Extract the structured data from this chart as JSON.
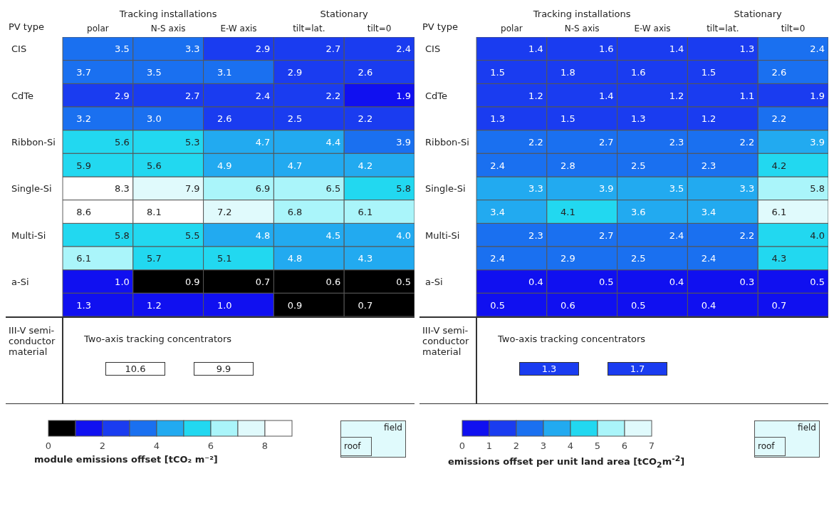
{
  "chart_data": [
    {
      "type": "heatmap",
      "categories": [
        "polar",
        "N-S axis",
        "E-W axis",
        "tilt=lat.",
        "tilt=0"
      ],
      "y_categories": [
        "CIS",
        null,
        "CdTe",
        null,
        "Ribbon-Si",
        null,
        "Single-Si",
        null,
        "Multi-Si",
        null,
        "a-Si",
        null
      ],
      "cells": [
        [
          3.5,
          3.3,
          2.9,
          2.7,
          2.4
        ],
        [
          3.7,
          3.5,
          3.1,
          2.9,
          2.6
        ],
        [
          2.9,
          2.7,
          2.4,
          2.2,
          1.9
        ],
        [
          3.2,
          3.0,
          2.6,
          2.5,
          2.2
        ],
        [
          5.6,
          5.3,
          4.7,
          4.4,
          3.9
        ],
        [
          5.9,
          5.6,
          4.9,
          4.7,
          4.2
        ],
        [
          8.3,
          7.9,
          6.9,
          6.5,
          5.8
        ],
        [
          8.6,
          8.1,
          7.2,
          6.8,
          6.1
        ],
        [
          5.8,
          5.5,
          4.8,
          4.5,
          4.0
        ],
        [
          6.1,
          5.7,
          5.1,
          4.8,
          4.3
        ],
        [
          1.0,
          0.9,
          0.7,
          0.6,
          0.5
        ],
        [
          1.3,
          1.2,
          1.0,
          0.9,
          0.7
        ]
      ],
      "cell_labels": [
        [
          "3.5",
          "3.3",
          "2.9",
          "2.7",
          "2.4"
        ],
        [
          "3.7",
          "3.5",
          "3.1",
          "2.9",
          "2.6"
        ],
        [
          "2.9",
          "2.7",
          "2.4",
          "2.2",
          "1.9"
        ],
        [
          "3.2",
          "3.0",
          "2.6",
          "2.5",
          "2.2"
        ],
        [
          "5.6",
          "5.3",
          "4.7",
          "4.4",
          "3.9"
        ],
        [
          "5.9",
          "5.6",
          "4.9",
          "4.7",
          "4.2"
        ],
        [
          "8.3",
          "7.9",
          "6.9",
          "6.5",
          "5.8"
        ],
        [
          "8.6",
          "8.1",
          "7.2",
          "6.8",
          "6.1"
        ],
        [
          "5.8",
          "5.5",
          "4.8",
          "4.5",
          "4.0"
        ],
        [
          "6.1",
          "5.7",
          "5.1",
          "4.8",
          "4.3"
        ],
        [
          "1.0",
          "0.9",
          "0.7",
          "0.6",
          "0.5"
        ],
        [
          "1.3",
          "1.2",
          "1.0",
          "0.9",
          "0.7"
        ]
      ],
      "clim": [
        0,
        9
      ],
      "cticks": [
        0,
        2,
        4,
        6,
        8
      ],
      "data_labels": true,
      "colors": [
        "#000000",
        "#1010f0",
        "#1a3cf0",
        "#1a70f0",
        "#22aaf0",
        "#22d8f0",
        "#aaf5fa",
        "#e0fafc",
        "#ffffff"
      ],
      "clabel": "module emissions offset [tCO₂ m⁻²]",
      "annotations": [
        "PV type",
        "Tracking installations",
        "Stationary",
        "III-V semi-conductor material",
        "Two-axis tracking concentrators",
        "10.6",
        "9.9",
        "field",
        "roof"
      ]
    },
    {
      "type": "heatmap",
      "categories": [
        "polar",
        "N-S axis",
        "E-W axis",
        "tilt=lat.",
        "tilt=0"
      ],
      "y_categories": [
        "CIS",
        null,
        "CdTe",
        null,
        "Ribbon-Si",
        null,
        "Single-Si",
        null,
        "Multi-Si",
        null,
        "a-Si",
        null
      ],
      "cells": [
        [
          1.4,
          1.6,
          1.4,
          1.3,
          2.4
        ],
        [
          1.5,
          1.8,
          1.6,
          1.5,
          2.6
        ],
        [
          1.2,
          1.4,
          1.2,
          1.1,
          1.9
        ],
        [
          1.3,
          1.5,
          1.3,
          1.2,
          2.2
        ],
        [
          2.2,
          2.7,
          2.3,
          2.2,
          3.9
        ],
        [
          2.4,
          2.8,
          2.5,
          2.3,
          4.2
        ],
        [
          3.3,
          3.9,
          3.5,
          3.3,
          5.8
        ],
        [
          3.4,
          4.1,
          3.6,
          3.4,
          6.1
        ],
        [
          2.3,
          2.7,
          2.4,
          2.2,
          4.0
        ],
        [
          2.4,
          2.9,
          2.5,
          2.4,
          4.3
        ],
        [
          0.4,
          0.5,
          0.4,
          0.3,
          0.5
        ],
        [
          0.5,
          0.6,
          0.5,
          0.4,
          0.7
        ]
      ],
      "cell_labels": [
        [
          "1.4",
          "1.6",
          "1.4",
          "1.3",
          "2.4"
        ],
        [
          "1.5",
          "1.8",
          "1.6",
          "1.5",
          "2.6"
        ],
        [
          "1.2",
          "1.4",
          "1.2",
          "1.1",
          "1.9"
        ],
        [
          "1.3",
          "1.5",
          "1.3",
          "1.2",
          "2.2"
        ],
        [
          "2.2",
          "2.7",
          "2.3",
          "2.2",
          "3.9"
        ],
        [
          "2.4",
          "2.8",
          "2.5",
          "2.3",
          "4.2"
        ],
        [
          "3.3",
          "3.9",
          "3.5",
          "3.3",
          "5.8"
        ],
        [
          "3.4",
          "4.1",
          "3.6",
          "3.4",
          "6.1"
        ],
        [
          "2.3",
          "2.7",
          "2.4",
          "2.2",
          "4.0"
        ],
        [
          "2.4",
          "2.9",
          "2.5",
          "2.4",
          "4.3"
        ],
        [
          "0.4",
          "0.5",
          "0.4",
          "0.3",
          "0.5"
        ],
        [
          "0.5",
          "0.6",
          "0.5",
          "0.4",
          "0.7"
        ]
      ],
      "clim": [
        0,
        7
      ],
      "cticks": [
        0,
        1,
        2,
        3,
        4,
        5,
        6,
        7
      ],
      "data_labels": true,
      "colors": [
        "#1010f0",
        "#1a3cf0",
        "#1a70f0",
        "#22aaf0",
        "#22d8f0",
        "#aaf5fa",
        "#e0fafc"
      ],
      "clabel": "emissions offset per unit land area [tCO$_{2}$m$^{-2}$]",
      "annotations": [
        "PV type",
        "Tracking installations",
        "Stationary",
        "III-V semi-conductor material",
        "Two-axis tracking concentrators",
        "1.3",
        "1.7",
        "field",
        "roof"
      ]
    }
  ]
}
